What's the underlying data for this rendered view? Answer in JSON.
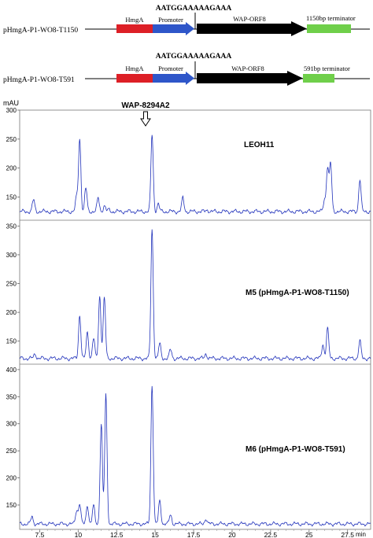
{
  "constructs": [
    {
      "name": "pHmgA-P1-WO8-T1150",
      "seq": "AATGGAAAAAGAAA",
      "segments": [
        {
          "label": "HmgA",
          "color": "#dd1f26"
        },
        {
          "label": "Promoter",
          "color": "#2e56c9"
        },
        {
          "label": "WAP-ORF8",
          "color": "#000000"
        },
        {
          "label": "1150bp terminator",
          "color": "#6fcf4a"
        }
      ]
    },
    {
      "name": "pHmgA-P1-WO8-T591",
      "seq": "AATGGAAAAAGAAA",
      "segments": [
        {
          "label": "HmgA",
          "color": "#dd1f26"
        },
        {
          "label": "Promoter",
          "color": "#2e56c9"
        },
        {
          "label": "WAP-ORF8",
          "color": "#000000"
        },
        {
          "label": "591bp terminator",
          "color": "#6fcf4a"
        }
      ]
    }
  ],
  "chromatogram": {
    "y_unit": "mAU",
    "x_unit": "min",
    "x_ticks": [
      "7.5",
      "10",
      "12.5",
      "15",
      "17.5",
      "20",
      "22.5",
      "25",
      "27.5"
    ],
    "peak_marker": "WAP-8294A2",
    "line_color": "#2233bb"
  },
  "chart_data": [
    {
      "type": "line",
      "title": "LEOH11",
      "ylabel": "mAU",
      "xlabel": "min",
      "xlim": [
        6.2,
        29
      ],
      "ylim": [
        110,
        300
      ],
      "yticks": [
        "300",
        "250",
        "200",
        "150",
        "100"
      ],
      "peaks": [
        [
          7.1,
          145
        ],
        [
          9.9,
          150
        ],
        [
          10.1,
          250
        ],
        [
          10.5,
          165
        ],
        [
          11.3,
          148
        ],
        [
          11.7,
          135
        ],
        [
          12.0,
          128
        ],
        [
          14.8,
          258
        ],
        [
          15.2,
          138
        ],
        [
          16.8,
          148
        ],
        [
          18.4,
          128
        ],
        [
          26.0,
          145
        ],
        [
          26.2,
          200
        ],
        [
          26.4,
          207
        ],
        [
          28.3,
          180
        ]
      ]
    },
    {
      "type": "line",
      "title": "M5 (pHmgA-P1-WO8-T1150)",
      "ylabel": "",
      "xlabel": "min",
      "xlim": [
        6.2,
        29
      ],
      "ylim": [
        110,
        360
      ],
      "yticks": [
        "350",
        "300",
        "250",
        "200",
        "150"
      ],
      "peaks": [
        [
          7.2,
          128
        ],
        [
          10.1,
          195
        ],
        [
          10.6,
          165
        ],
        [
          11.0,
          155
        ],
        [
          11.4,
          228
        ],
        [
          11.7,
          225
        ],
        [
          14.8,
          345
        ],
        [
          15.3,
          145
        ],
        [
          16.0,
          135
        ],
        [
          18.3,
          128
        ],
        [
          25.9,
          145
        ],
        [
          26.2,
          172
        ],
        [
          28.3,
          150
        ]
      ]
    },
    {
      "type": "line",
      "title": "M6 (pHmgA-P1-WO8-T591)",
      "ylabel": "",
      "xlabel": "min",
      "xlim": [
        6.2,
        29
      ],
      "ylim": [
        105,
        410
      ],
      "yticks": [
        "400",
        "350",
        "300",
        "250",
        "200",
        "150",
        "100"
      ],
      "peaks": [
        [
          7.0,
          128
        ],
        [
          9.9,
          140
        ],
        [
          10.1,
          152
        ],
        [
          10.6,
          150
        ],
        [
          11.0,
          148
        ],
        [
          11.5,
          300
        ],
        [
          11.8,
          353
        ],
        [
          14.8,
          372
        ],
        [
          15.3,
          158
        ],
        [
          16.0,
          132
        ],
        [
          18.3,
          125
        ]
      ]
    }
  ]
}
